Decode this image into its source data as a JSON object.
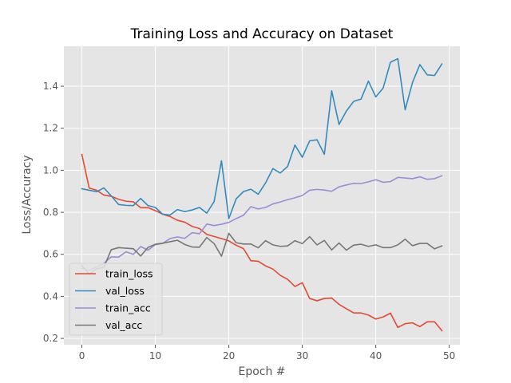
{
  "chart_data": {
    "type": "line",
    "title": "Training Loss and Accuracy on Dataset",
    "xlabel": "Epoch #",
    "ylabel": "Loss/Accuracy",
    "xlim": [
      -2.45,
      51.45
    ],
    "ylim": [
      0.17,
      1.59
    ],
    "xticks": [
      0,
      10,
      20,
      30,
      40,
      50
    ],
    "yticks": [
      0.2,
      0.4,
      0.6,
      0.8,
      1.0,
      1.2,
      1.4
    ],
    "xtick_labels": [
      "0",
      "10",
      "20",
      "30",
      "40",
      "50"
    ],
    "ytick_labels": [
      "0.2",
      "0.4",
      "0.6",
      "0.8",
      "1.0",
      "1.2",
      "1.4"
    ],
    "grid": true,
    "style": "ggplot",
    "legend_position": "lower-left",
    "x": [
      0,
      1,
      2,
      3,
      4,
      5,
      6,
      7,
      8,
      9,
      10,
      11,
      12,
      13,
      14,
      15,
      16,
      17,
      18,
      19,
      20,
      21,
      22,
      23,
      24,
      25,
      26,
      27,
      28,
      29,
      30,
      31,
      32,
      33,
      34,
      35,
      36,
      37,
      38,
      39,
      40,
      41,
      42,
      43,
      44,
      45,
      46,
      47,
      48,
      49
    ],
    "series": [
      {
        "name": "train_loss",
        "color": "#E24A33",
        "values": [
          1.075,
          0.915,
          0.905,
          0.882,
          0.876,
          0.862,
          0.853,
          0.85,
          0.822,
          0.822,
          0.808,
          0.791,
          0.78,
          0.762,
          0.753,
          0.733,
          0.723,
          0.695,
          0.685,
          0.675,
          0.664,
          0.643,
          0.627,
          0.57,
          0.567,
          0.545,
          0.53,
          0.5,
          0.481,
          0.447,
          0.465,
          0.39,
          0.379,
          0.39,
          0.392,
          0.362,
          0.341,
          0.321,
          0.321,
          0.311,
          0.292,
          0.302,
          0.32,
          0.252,
          0.27,
          0.274,
          0.256,
          0.279,
          0.279,
          0.237
        ]
      },
      {
        "name": "val_loss",
        "color": "#348ABD",
        "values": [
          0.912,
          0.905,
          0.898,
          0.916,
          0.878,
          0.837,
          0.833,
          0.832,
          0.866,
          0.832,
          0.823,
          0.791,
          0.787,
          0.813,
          0.803,
          0.811,
          0.823,
          0.796,
          0.851,
          1.045,
          0.77,
          0.864,
          0.899,
          0.91,
          0.886,
          0.94,
          1.008,
          0.987,
          1.018,
          1.12,
          1.062,
          1.14,
          1.145,
          1.076,
          1.378,
          1.218,
          1.282,
          1.328,
          1.339,
          1.424,
          1.349,
          1.391,
          1.514,
          1.531,
          1.288,
          1.418,
          1.503,
          1.454,
          1.451,
          1.506
        ]
      },
      {
        "name": "train_acc",
        "color": "#988ED5",
        "values": [
          0.533,
          0.524,
          0.54,
          0.557,
          0.588,
          0.587,
          0.612,
          0.6,
          0.637,
          0.62,
          0.646,
          0.652,
          0.675,
          0.683,
          0.676,
          0.703,
          0.698,
          0.744,
          0.737,
          0.743,
          0.752,
          0.77,
          0.786,
          0.827,
          0.816,
          0.823,
          0.84,
          0.849,
          0.86,
          0.869,
          0.88,
          0.905,
          0.909,
          0.906,
          0.9,
          0.921,
          0.93,
          0.938,
          0.937,
          0.945,
          0.955,
          0.943,
          0.946,
          0.966,
          0.963,
          0.96,
          0.969,
          0.957,
          0.96,
          0.974
        ]
      },
      {
        "name": "val_acc",
        "color": "#777777",
        "values": [
          0.546,
          0.506,
          0.531,
          0.539,
          0.622,
          0.632,
          0.629,
          0.627,
          0.592,
          0.633,
          0.648,
          0.653,
          0.66,
          0.667,
          0.647,
          0.635,
          0.634,
          0.68,
          0.651,
          0.591,
          0.7,
          0.655,
          0.649,
          0.649,
          0.631,
          0.665,
          0.645,
          0.638,
          0.64,
          0.665,
          0.651,
          0.684,
          0.645,
          0.666,
          0.621,
          0.654,
          0.62,
          0.644,
          0.648,
          0.638,
          0.645,
          0.632,
          0.632,
          0.645,
          0.672,
          0.641,
          0.652,
          0.652,
          0.626,
          0.64
        ]
      }
    ]
  }
}
